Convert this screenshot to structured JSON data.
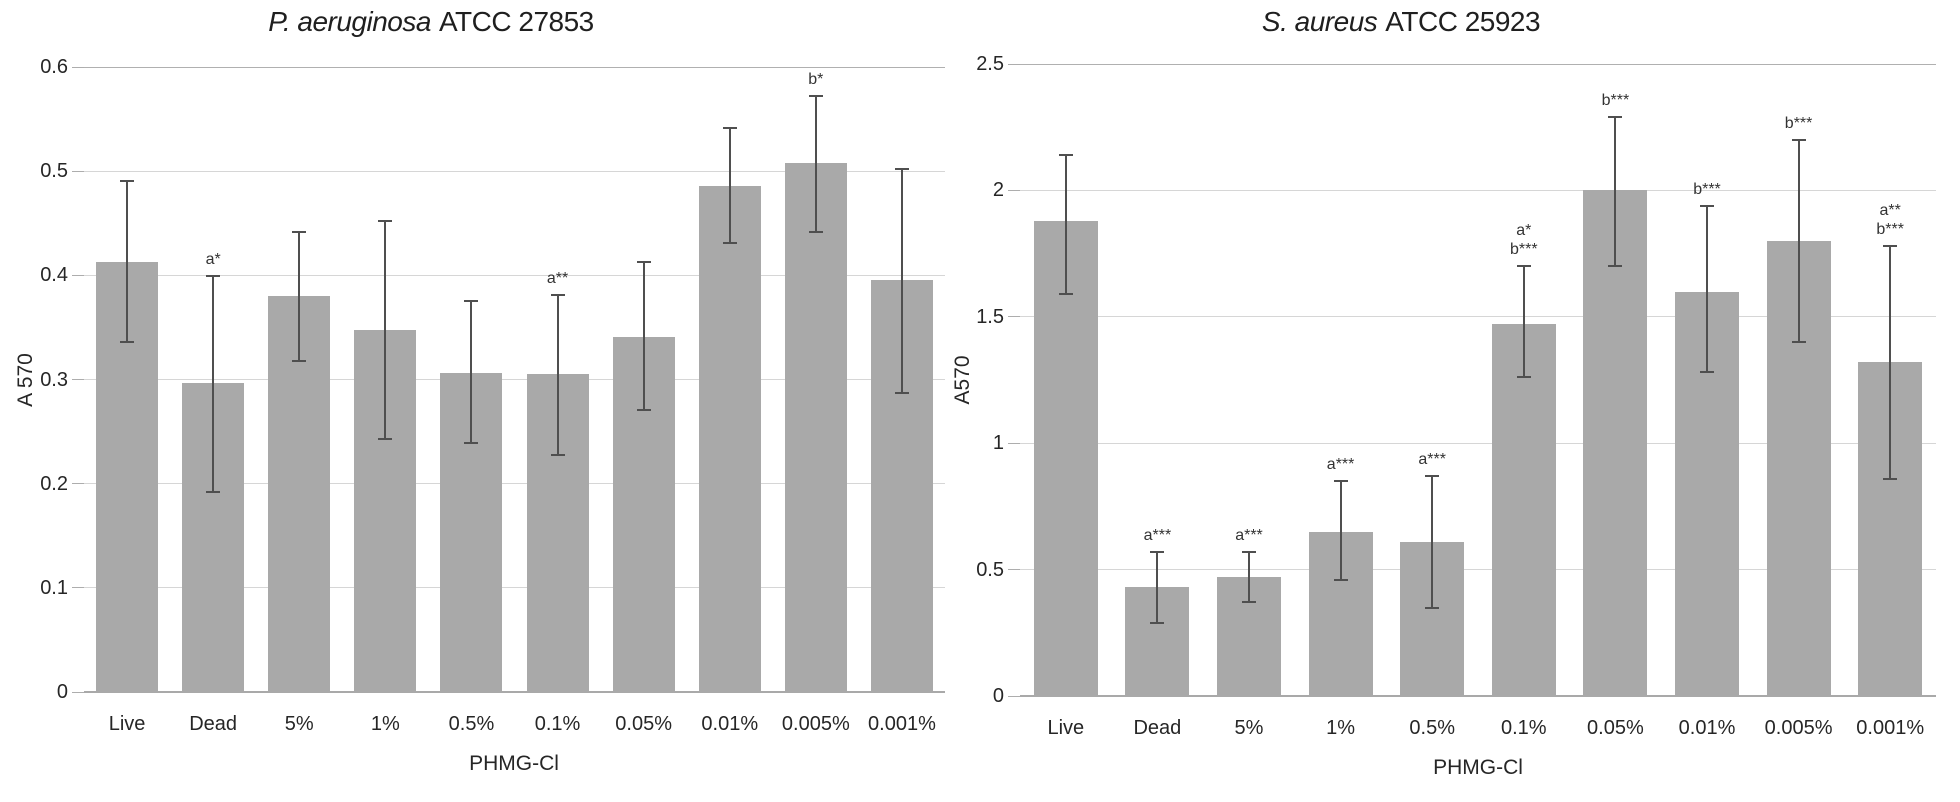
{
  "page": {
    "background": "#ffffff"
  },
  "colors": {
    "bar": "#a9a9a9",
    "error_bar": "#4f4f4f",
    "gridline": "#d6d6d6",
    "gridline_top": "#b0b0b0",
    "axis_line": "#a9a9a9",
    "tick_mark": "#adadad",
    "text": "#262626"
  },
  "chart_data": [
    {
      "type": "bar",
      "title_italic": "P. aeruginosa",
      "title_rest": "ATCC 27853",
      "ylabel": "A 570",
      "xlabel": "PHMG-Cl",
      "ylim": [
        0,
        0.6
      ],
      "grid": true,
      "legend": null,
      "yticks": [
        {
          "value": 0,
          "label": "0"
        },
        {
          "value": 0.1,
          "label": "0.1"
        },
        {
          "value": 0.2,
          "label": "0.2"
        },
        {
          "value": 0.3,
          "label": "0.3"
        },
        {
          "value": 0.4,
          "label": "0.4"
        },
        {
          "value": 0.5,
          "label": "0.5"
        },
        {
          "value": 0.6,
          "label": "0.6"
        }
      ],
      "categories": [
        "Live",
        "Dead",
        "5%",
        "1%",
        "0.5%",
        "0.1%",
        "0.05%",
        "0.01%",
        "0.005%",
        "0.001%"
      ],
      "values": [
        0.413,
        0.297,
        0.38,
        0.348,
        0.306,
        0.305,
        0.341,
        0.486,
        0.508,
        0.396
      ],
      "error_high": [
        0.078,
        0.102,
        0.062,
        0.104,
        0.069,
        0.076,
        0.072,
        0.055,
        0.064,
        0.106
      ],
      "error_low": [
        0.077,
        0.105,
        0.062,
        0.105,
        0.067,
        0.077,
        0.07,
        0.055,
        0.066,
        0.109
      ],
      "annotations": [
        [],
        [
          "a*"
        ],
        [],
        [],
        [],
        [
          "a**"
        ],
        [],
        [],
        [
          "b*"
        ],
        []
      ]
    },
    {
      "type": "bar",
      "title_italic": "S. aureus",
      "title_rest": "ATCC 25923",
      "ylabel": "A570",
      "xlabel": "PHMG-Cl",
      "ylim": [
        0,
        2.5
      ],
      "grid": true,
      "legend": null,
      "yticks": [
        {
          "value": 0,
          "label": "0"
        },
        {
          "value": 0.5,
          "label": "0.5"
        },
        {
          "value": 1,
          "label": "1"
        },
        {
          "value": 1.5,
          "label": "1.5"
        },
        {
          "value": 2,
          "label": "2"
        },
        {
          "value": 2.5,
          "label": "2.5"
        }
      ],
      "categories": [
        "Live",
        "Dead",
        "5%",
        "1%",
        "0.5%",
        "0.1%",
        "0.05%",
        "0.01%",
        "0.005%",
        "0.001%"
      ],
      "values": [
        1.88,
        0.43,
        0.47,
        0.65,
        0.61,
        1.47,
        2.0,
        1.6,
        1.8,
        1.32
      ],
      "error_high": [
        0.26,
        0.14,
        0.1,
        0.2,
        0.26,
        0.23,
        0.29,
        0.34,
        0.4,
        0.46
      ],
      "error_low": [
        0.29,
        0.14,
        0.1,
        0.19,
        0.26,
        0.21,
        0.3,
        0.32,
        0.4,
        0.46
      ],
      "annotations": [
        [],
        [
          "a***"
        ],
        [
          "a***"
        ],
        [
          "a***"
        ],
        [
          "a***"
        ],
        [
          "a*",
          "b***"
        ],
        [
          "b***"
        ],
        [
          "b***"
        ],
        [
          "b***"
        ],
        [
          "a**",
          "b***"
        ]
      ]
    }
  ]
}
